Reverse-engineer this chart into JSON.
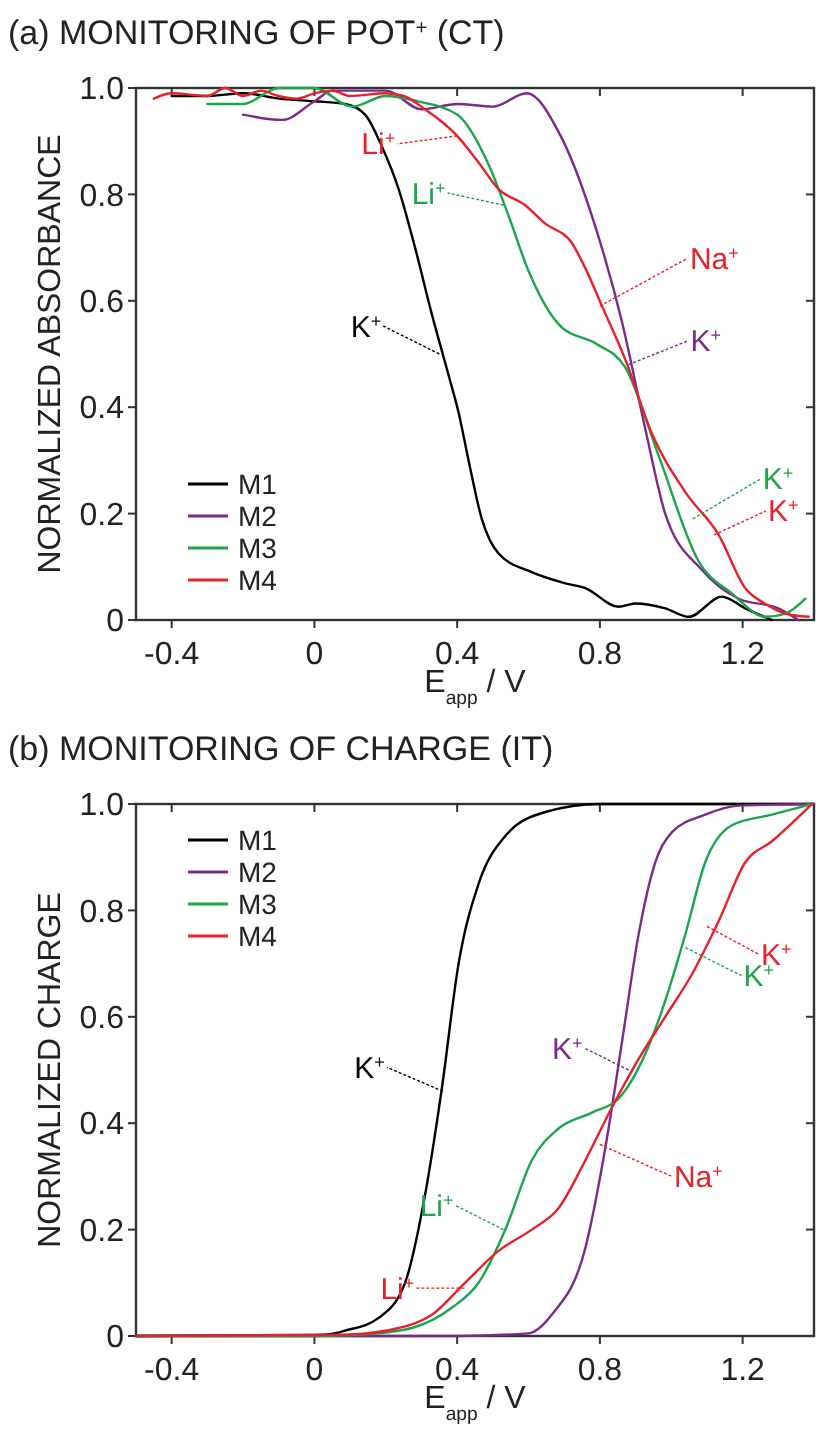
{
  "chart_data": [
    {
      "type": "line",
      "title": "(a) MONITORING OF POT$^{+}$ (CT)",
      "xlabel": "E$_{app}$ / V",
      "ylabel": "NORMALIZED ABSORBANCE",
      "xlim": [
        -0.5,
        1.4
      ],
      "ylim": [
        0,
        1
      ],
      "xticks": [
        -0.4,
        0,
        0.4,
        0.8,
        1.2
      ],
      "yticks": [
        0,
        0.2,
        0.4,
        0.6,
        0.8,
        {
          "value": 1,
          "label": "1.0"
        }
      ],
      "legend": "bottom left",
      "grid": false,
      "marker": "none",
      "line_style": "solid",
      "series": [
        {
          "name": "M1",
          "color": "#000000",
          "x": [
            -0.4,
            -0.3,
            -0.2,
            -0.1,
            0,
            0.086,
            0.142,
            0.189,
            0.236,
            0.282,
            0.329,
            0.376,
            0.404,
            0.432,
            0.469,
            0.516,
            0.609,
            0.703,
            0.759,
            0.852,
            0.899,
            0.983,
            1.049,
            1.142,
            1.207,
            1.282
          ],
          "values": [
            0.985,
            0.985,
            0.99,
            0.98,
            0.975,
            0.97,
            0.95,
            0.89,
            0.81,
            0.7,
            0.575,
            0.46,
            0.39,
            0.3,
            0.19,
            0.125,
            0.09,
            0.069,
            0.06,
            0.025,
            0.031,
            0.022,
            0.006,
            0.044,
            0.022,
            0
          ]
        },
        {
          "name": "M2",
          "color": "#7b2a8c",
          "x": [
            -0.2,
            -0.09,
            0,
            0.05,
            0.2,
            0.3,
            0.4,
            0.5,
            0.595,
            0.69,
            0.787,
            0.862,
            0.927,
            0.983,
            1.086,
            1.189,
            1.3,
            1.357
          ],
          "values": [
            0.95,
            0.94,
            0.975,
            0.995,
            0.995,
            0.96,
            0.97,
            0.965,
            0.99,
            0.91,
            0.74,
            0.56,
            0.36,
            0.2,
            0.094,
            0.04,
            0.022,
            0
          ]
        },
        {
          "name": "M3",
          "color": "#1aa64a",
          "x": [
            -0.3,
            -0.2,
            -0.1,
            0,
            0.105,
            0.2,
            0.29,
            0.4,
            0.488,
            0.544,
            0.6,
            0.693,
            0.787,
            0.871,
            0.964,
            1.077,
            1.17,
            1.264,
            1.32,
            1.376
          ],
          "values": [
            0.97,
            0.97,
            1,
            1,
            0.965,
            0.985,
            0.975,
            0.95,
            0.856,
            0.76,
            0.656,
            0.55,
            0.52,
            0.475,
            0.31,
            0.11,
            0.05,
            0.006,
            0.012,
            0.04
          ]
        },
        {
          "name": "M4",
          "color": "#e8202a",
          "x": [
            -0.45,
            -0.4,
            -0.3,
            -0.25,
            -0.2,
            -0.15,
            -0.1,
            -0.05,
            0,
            0.05,
            0.1,
            0.2,
            0.25,
            0.31,
            0.4,
            0.46,
            0.516,
            0.59,
            0.647,
            0.72,
            0.76,
            0.806,
            0.871,
            0.946,
            1.04,
            1.133,
            1.207,
            1.264,
            1.32,
            1.385
          ],
          "values": [
            0.98,
            0.99,
            0.985,
            1,
            0.985,
            0.995,
            0.985,
            0.98,
            0.99,
            0.995,
            0.985,
            0.99,
            0.985,
            0.96,
            0.91,
            0.86,
            0.81,
            0.78,
            0.745,
            0.71,
            0.66,
            0.59,
            0.49,
            0.35,
            0.24,
            0.16,
            0.06,
            0.03,
            0.012,
            0.006
          ]
        }
      ],
      "annotations": [
        {
          "text": "K$^{+}$",
          "x": 0.35,
          "y": 0.5
        },
        {
          "text": "Li$^{+}$",
          "x": 0.4,
          "y": 0.91
        },
        {
          "text": "Li$^{+}$",
          "x": 0.53,
          "y": 0.78
        },
        {
          "text": "Na$^{+}$",
          "x": 0.8,
          "y": 0.59
        },
        {
          "text": "K$^{+}$",
          "x": 0.88,
          "y": 0.48
        },
        {
          "text": "K$^{+}$",
          "x": 1.06,
          "y": 0.19
        },
        {
          "text": "K$^{+}$",
          "x": 1.12,
          "y": 0.16
        }
      ]
    },
    {
      "type": "line",
      "title": "(b) MONITORING OF CHARGE (IT)",
      "xlabel": "E$_{app}$ / V",
      "ylabel": "NORMALIZED CHARGE",
      "xlim": [
        -0.5,
        1.4
      ],
      "ylim": [
        0,
        1
      ],
      "xticks": [
        -0.4,
        0,
        0.4,
        0.8,
        1.2
      ],
      "yticks": [
        0,
        0.2,
        0.4,
        0.6,
        0.8,
        {
          "value": 1,
          "label": "1.0"
        }
      ],
      "legend": "top left",
      "grid": false,
      "marker": "none",
      "line_style": "solid",
      "series": [
        {
          "name": "M1",
          "color": "#000000",
          "x": [
            -0.5,
            0,
            0.05,
            0.086,
            0.18,
            0.254,
            0.31,
            0.357,
            0.404,
            0.46,
            0.535,
            0.647,
            0.8,
            1.4
          ],
          "values": [
            0,
            0.002,
            0.004,
            0.01,
            0.034,
            0.1,
            0.265,
            0.465,
            0.7,
            0.85,
            0.94,
            0.985,
            1,
            1
          ]
        },
        {
          "name": "M2",
          "color": "#7b2a8c",
          "x": [
            -0.5,
            0.4,
            0.6,
            0.665,
            0.759,
            0.815,
            0.862,
            0.908,
            0.955,
            1.002,
            1.095,
            1.189,
            1.4
          ],
          "values": [
            0,
            0,
            0.005,
            0.04,
            0.165,
            0.353,
            0.553,
            0.753,
            0.89,
            0.947,
            0.98,
            0.997,
            1
          ]
        },
        {
          "name": "M3",
          "color": "#1aa64a",
          "x": [
            -0.5,
            0,
            0.142,
            0.273,
            0.385,
            0.46,
            0.535,
            0.609,
            0.684,
            0.778,
            0.852,
            0.927,
            0.983,
            1.039,
            1.095,
            1.17,
            1.282,
            1.394
          ],
          "values": [
            0,
            0,
            0.003,
            0.015,
            0.053,
            0.1,
            0.2,
            0.33,
            0.39,
            0.42,
            0.446,
            0.53,
            0.63,
            0.754,
            0.89,
            0.96,
            0.98,
            1
          ]
        },
        {
          "name": "M4",
          "color": "#e8202a",
          "x": [
            -0.5,
            0,
            0.1,
            0.236,
            0.329,
            0.422,
            0.516,
            0.609,
            0.684,
            0.759,
            0.834,
            0.908,
            0.983,
            1.058,
            1.133,
            1.207,
            1.282,
            1.394
          ],
          "values": [
            0,
            0.002,
            0.003,
            0.015,
            0.04,
            0.1,
            0.16,
            0.2,
            0.24,
            0.33,
            0.43,
            0.52,
            0.6,
            0.68,
            0.78,
            0.89,
            0.93,
            1
          ]
        }
      ],
      "annotations": [
        {
          "text": "K$^{+}$",
          "x": 0.36,
          "y": 0.46
        },
        {
          "text": "K$^{+}$",
          "x": 0.88,
          "y": 0.5
        },
        {
          "text": "Na$^{+}$",
          "x": 0.8,
          "y": 0.36
        },
        {
          "text": "Li$^{+}$",
          "x": 0.53,
          "y": 0.2
        },
        {
          "text": "Li$^{+}$",
          "x": 0.42,
          "y": 0.09
        },
        {
          "text": "K$^{+}$",
          "x": 1.04,
          "y": 0.73
        },
        {
          "text": "K$^{+}$",
          "x": 1.1,
          "y": 0.77
        }
      ]
    }
  ]
}
